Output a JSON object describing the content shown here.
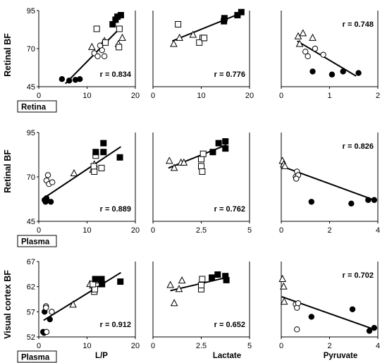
{
  "row_labels": [
    "Retinal BF",
    "Retinal BF",
    "Visual cortex BF"
  ],
  "column_labels": [
    "L/P",
    "Lactate",
    "Pyruvate"
  ],
  "chart_data": [
    {
      "type": "scatter",
      "row": 0,
      "col": 0,
      "xlim": [
        0,
        20
      ],
      "ylim": [
        45,
        95
      ],
      "xticks": [
        0,
        10,
        20
      ],
      "yticks": [
        45,
        70,
        95
      ],
      "box_label": "Retina",
      "r": "r = 0.834",
      "fit": [
        [
          5.5,
          47
        ],
        [
          17,
          84
        ]
      ],
      "points": [
        {
          "x": 4.8,
          "y": 50,
          "m": "fc"
        },
        {
          "x": 6.3,
          "y": 49,
          "m": "fc"
        },
        {
          "x": 7.6,
          "y": 49.5,
          "m": "fc"
        },
        {
          "x": 8.5,
          "y": 50,
          "m": "fc"
        },
        {
          "x": 11.5,
          "y": 67,
          "m": "oc"
        },
        {
          "x": 12.2,
          "y": 65,
          "m": "oc"
        },
        {
          "x": 13.1,
          "y": 69,
          "m": "oc"
        },
        {
          "x": 13.6,
          "y": 65,
          "m": "oc"
        },
        {
          "x": 12.7,
          "y": 72,
          "m": "oc"
        },
        {
          "x": 11,
          "y": 71,
          "m": "ot"
        },
        {
          "x": 13.6,
          "y": 75,
          "m": "ot"
        },
        {
          "x": 16.5,
          "y": 73,
          "m": "ot"
        },
        {
          "x": 17.3,
          "y": 77,
          "m": "ot"
        },
        {
          "x": 12,
          "y": 83,
          "m": "os"
        },
        {
          "x": 13.8,
          "y": 74,
          "m": "os"
        },
        {
          "x": 16.6,
          "y": 71,
          "m": "os"
        },
        {
          "x": 16.7,
          "y": 83,
          "m": "os"
        },
        {
          "x": 15.3,
          "y": 86,
          "m": "fs"
        },
        {
          "x": 15.9,
          "y": 89,
          "m": "fs"
        },
        {
          "x": 16.3,
          "y": 91,
          "m": "fs"
        },
        {
          "x": 17,
          "y": 92,
          "m": "fs"
        }
      ]
    },
    {
      "type": "scatter",
      "row": 0,
      "col": 1,
      "xlim": [
        0,
        20
      ],
      "ylim": [
        45,
        95
      ],
      "xticks": [
        0,
        10,
        20
      ],
      "yticks": [],
      "r": "r = 0.776",
      "fit": [
        [
          4,
          75
        ],
        [
          18,
          93
        ]
      ],
      "points": [
        {
          "x": 4.3,
          "y": 73,
          "m": "ot"
        },
        {
          "x": 5.5,
          "y": 77,
          "m": "ot"
        },
        {
          "x": 8.3,
          "y": 79,
          "m": "ot"
        },
        {
          "x": 5.2,
          "y": 86,
          "m": "os"
        },
        {
          "x": 10.3,
          "y": 77,
          "m": "os"
        },
        {
          "x": 9.6,
          "y": 74,
          "m": "os"
        },
        {
          "x": 10.6,
          "y": 77,
          "m": "os"
        },
        {
          "x": 14.7,
          "y": 88,
          "m": "fs"
        },
        {
          "x": 14.8,
          "y": 90,
          "m": "fs"
        },
        {
          "x": 18.3,
          "y": 94,
          "m": "fs"
        },
        {
          "x": 17.5,
          "y": 92,
          "m": "fs"
        }
      ]
    },
    {
      "type": "scatter",
      "row": 0,
      "col": 2,
      "xlim": [
        0,
        2
      ],
      "ylim": [
        45,
        95
      ],
      "xticks": [
        0,
        1,
        2
      ],
      "yticks": [],
      "r": "r = 0.748",
      "fit": [
        [
          0.33,
          75
        ],
        [
          1.55,
          52
        ]
      ],
      "points": [
        {
          "x": 0.35,
          "y": 78,
          "m": "ot"
        },
        {
          "x": 0.45,
          "y": 80,
          "m": "ot"
        },
        {
          "x": 0.65,
          "y": 77,
          "m": "ot"
        },
        {
          "x": 0.38,
          "y": 73,
          "m": "ot"
        },
        {
          "x": 0.5,
          "y": 68,
          "m": "oc"
        },
        {
          "x": 0.55,
          "y": 65,
          "m": "oc"
        },
        {
          "x": 0.7,
          "y": 70,
          "m": "oc"
        },
        {
          "x": 0.87,
          "y": 66,
          "m": "oc"
        },
        {
          "x": 0.65,
          "y": 55,
          "m": "fc"
        },
        {
          "x": 1.05,
          "y": 53,
          "m": "fc"
        },
        {
          "x": 1.28,
          "y": 55,
          "m": "fc"
        },
        {
          "x": 1.6,
          "y": 54,
          "m": "fc"
        }
      ]
    },
    {
      "type": "scatter",
      "row": 1,
      "col": 0,
      "xlim": [
        0,
        20
      ],
      "ylim": [
        45,
        95
      ],
      "xticks": [
        0,
        10,
        20
      ],
      "yticks": [
        45,
        70,
        95
      ],
      "box_label": "Plasma",
      "r": "r = 0.889",
      "fit": [
        [
          1,
          58
        ],
        [
          17,
          87
        ]
      ],
      "points": [
        {
          "x": 1.2,
          "y": 57,
          "m": "fc"
        },
        {
          "x": 1.4,
          "y": 56,
          "m": "fc"
        },
        {
          "x": 2.5,
          "y": 56,
          "m": "fc"
        },
        {
          "x": 1.6,
          "y": 58,
          "m": "fc"
        },
        {
          "x": 1.6,
          "y": 68,
          "m": "oc"
        },
        {
          "x": 1.9,
          "y": 71,
          "m": "oc"
        },
        {
          "x": 2.1,
          "y": 66,
          "m": "oc"
        },
        {
          "x": 2.8,
          "y": 67,
          "m": "oc"
        },
        {
          "x": 7.3,
          "y": 72,
          "m": "ot"
        },
        {
          "x": 11.2,
          "y": 74,
          "m": "ot"
        },
        {
          "x": 11.5,
          "y": 77,
          "m": "ot"
        },
        {
          "x": 11.5,
          "y": 73,
          "m": "os"
        },
        {
          "x": 11.4,
          "y": 76,
          "m": "os"
        },
        {
          "x": 13,
          "y": 75,
          "m": "os"
        },
        {
          "x": 11.8,
          "y": 82,
          "m": "os"
        },
        {
          "x": 11.8,
          "y": 84,
          "m": "fs"
        },
        {
          "x": 13.4,
          "y": 84,
          "m": "fs"
        },
        {
          "x": 13.4,
          "y": 89,
          "m": "fs"
        },
        {
          "x": 16.8,
          "y": 81,
          "m": "fs"
        }
      ]
    },
    {
      "type": "scatter",
      "row": 1,
      "col": 1,
      "xlim": [
        0,
        5
      ],
      "ylim": [
        45,
        95
      ],
      "xticks": [
        0,
        2.5,
        5
      ],
      "yticks": [],
      "r": "r = 0.762",
      "fit": [
        [
          0.8,
          75
        ],
        [
          3.8,
          88
        ]
      ],
      "points": [
        {
          "x": 0.85,
          "y": 79,
          "m": "ot"
        },
        {
          "x": 1.1,
          "y": 75,
          "m": "ot"
        },
        {
          "x": 1.45,
          "y": 78,
          "m": "ot"
        },
        {
          "x": 1.6,
          "y": 78,
          "m": "ot"
        },
        {
          "x": 2.5,
          "y": 80,
          "m": "os"
        },
        {
          "x": 2.5,
          "y": 76,
          "m": "os"
        },
        {
          "x": 2.55,
          "y": 73,
          "m": "os"
        },
        {
          "x": 2.6,
          "y": 83,
          "m": "os"
        },
        {
          "x": 3.1,
          "y": 84,
          "m": "fs"
        },
        {
          "x": 3.4,
          "y": 89,
          "m": "fs"
        },
        {
          "x": 3.75,
          "y": 90,
          "m": "fs"
        },
        {
          "x": 3.75,
          "y": 86,
          "m": "fs"
        }
      ]
    },
    {
      "type": "scatter",
      "row": 1,
      "col": 2,
      "xlim": [
        0,
        4
      ],
      "ylim": [
        45,
        95
      ],
      "xticks": [
        0,
        2,
        4
      ],
      "yticks": [],
      "r": "r = 0.826",
      "fit": [
        [
          0.02,
          76
        ],
        [
          3.85,
          57
        ]
      ],
      "points": [
        {
          "x": 0.05,
          "y": 79,
          "m": "ot"
        },
        {
          "x": 0.1,
          "y": 77,
          "m": "ot"
        },
        {
          "x": 0.15,
          "y": 76,
          "m": "ot"
        },
        {
          "x": 0.6,
          "y": 70,
          "m": "oc"
        },
        {
          "x": 0.65,
          "y": 73,
          "m": "oc"
        },
        {
          "x": 0.7,
          "y": 71,
          "m": "oc"
        },
        {
          "x": 0.62,
          "y": 69,
          "m": "oc"
        },
        {
          "x": 1.25,
          "y": 56,
          "m": "fc"
        },
        {
          "x": 2.9,
          "y": 55,
          "m": "fc"
        },
        {
          "x": 3.6,
          "y": 57,
          "m": "fc"
        },
        {
          "x": 3.85,
          "y": 57,
          "m": "fc"
        }
      ]
    },
    {
      "type": "scatter",
      "row": 2,
      "col": 0,
      "xlim": [
        0,
        20
      ],
      "ylim": [
        52,
        67
      ],
      "xticks": [
        0,
        10,
        20
      ],
      "yticks": [
        52,
        57,
        62,
        67
      ],
      "box_label": "Plasma",
      "xlabel": "L/P",
      "r": "r = 0.912",
      "fit": [
        [
          1,
          55.3
        ],
        [
          17,
          64.8
        ]
      ],
      "points": [
        {
          "x": 0.9,
          "y": 53,
          "m": "fc"
        },
        {
          "x": 1.1,
          "y": 52.8,
          "m": "fc"
        },
        {
          "x": 2.3,
          "y": 55.5,
          "m": "fc"
        },
        {
          "x": 1.2,
          "y": 57,
          "m": "fc"
        },
        {
          "x": 1.6,
          "y": 53,
          "m": "oc"
        },
        {
          "x": 1.5,
          "y": 58.1,
          "m": "oc"
        },
        {
          "x": 2.7,
          "y": 57,
          "m": "oc"
        },
        {
          "x": 1.5,
          "y": 57.8,
          "m": "oc"
        },
        {
          "x": 7.1,
          "y": 58.4,
          "m": "ot"
        },
        {
          "x": 10.6,
          "y": 62.5,
          "m": "ot"
        },
        {
          "x": 11.2,
          "y": 62.2,
          "m": "ot"
        },
        {
          "x": 11.8,
          "y": 63.2,
          "m": "ot"
        },
        {
          "x": 11.5,
          "y": 61,
          "m": "os"
        },
        {
          "x": 11.6,
          "y": 61.5,
          "m": "os"
        },
        {
          "x": 11.2,
          "y": 62.5,
          "m": "os"
        },
        {
          "x": 11.7,
          "y": 63.5,
          "m": "fs"
        },
        {
          "x": 13,
          "y": 63.5,
          "m": "fs"
        },
        {
          "x": 13.1,
          "y": 62.5,
          "m": "fs"
        },
        {
          "x": 16.9,
          "y": 63,
          "m": "fs"
        }
      ]
    },
    {
      "type": "scatter",
      "row": 2,
      "col": 1,
      "xlim": [
        0,
        5
      ],
      "ylim": [
        52,
        67
      ],
      "xticks": [
        0,
        2.5,
        5
      ],
      "yticks": [],
      "xlabel": "Lactate",
      "r": "r = 0.652",
      "fit": [
        [
          0.9,
          61.2
        ],
        [
          3.8,
          63.8
        ]
      ],
      "points": [
        {
          "x": 0.9,
          "y": 62.3,
          "m": "ot"
        },
        {
          "x": 1.1,
          "y": 58.7,
          "m": "ot"
        },
        {
          "x": 1.5,
          "y": 63.2,
          "m": "ot"
        },
        {
          "x": 1.35,
          "y": 61.5,
          "m": "ot"
        },
        {
          "x": 2.5,
          "y": 61.5,
          "m": "os"
        },
        {
          "x": 2.5,
          "y": 62.3,
          "m": "os"
        },
        {
          "x": 2.55,
          "y": 63.5,
          "m": "os"
        },
        {
          "x": 3.05,
          "y": 63.8,
          "m": "fs"
        },
        {
          "x": 3.35,
          "y": 64.4,
          "m": "fs"
        },
        {
          "x": 3.75,
          "y": 64.1,
          "m": "fs"
        },
        {
          "x": 3.8,
          "y": 63.3,
          "m": "fs"
        }
      ]
    },
    {
      "type": "scatter",
      "row": 2,
      "col": 2,
      "xlim": [
        0,
        4
      ],
      "ylim": [
        52,
        67
      ],
      "xticks": [
        0,
        2,
        4
      ],
      "yticks": [],
      "xlabel": "Pyruvate",
      "r": "r = 0.702",
      "fit": [
        [
          0.02,
          60
        ],
        [
          3.85,
          53.5
        ]
      ],
      "points": [
        {
          "x": 0.05,
          "y": 63.5,
          "m": "ot"
        },
        {
          "x": 0.1,
          "y": 62,
          "m": "ot"
        },
        {
          "x": 0.12,
          "y": 59,
          "m": "ot"
        },
        {
          "x": 0.6,
          "y": 58.5,
          "m": "oc"
        },
        {
          "x": 0.65,
          "y": 57.8,
          "m": "oc"
        },
        {
          "x": 0.7,
          "y": 58.7,
          "m": "oc"
        },
        {
          "x": 0.65,
          "y": 53.5,
          "m": "oc"
        },
        {
          "x": 1.25,
          "y": 56,
          "m": "fc"
        },
        {
          "x": 2.95,
          "y": 57.5,
          "m": "fc"
        },
        {
          "x": 3.65,
          "y": 53.2,
          "m": "fc"
        },
        {
          "x": 3.85,
          "y": 53.8,
          "m": "fc"
        }
      ]
    }
  ]
}
